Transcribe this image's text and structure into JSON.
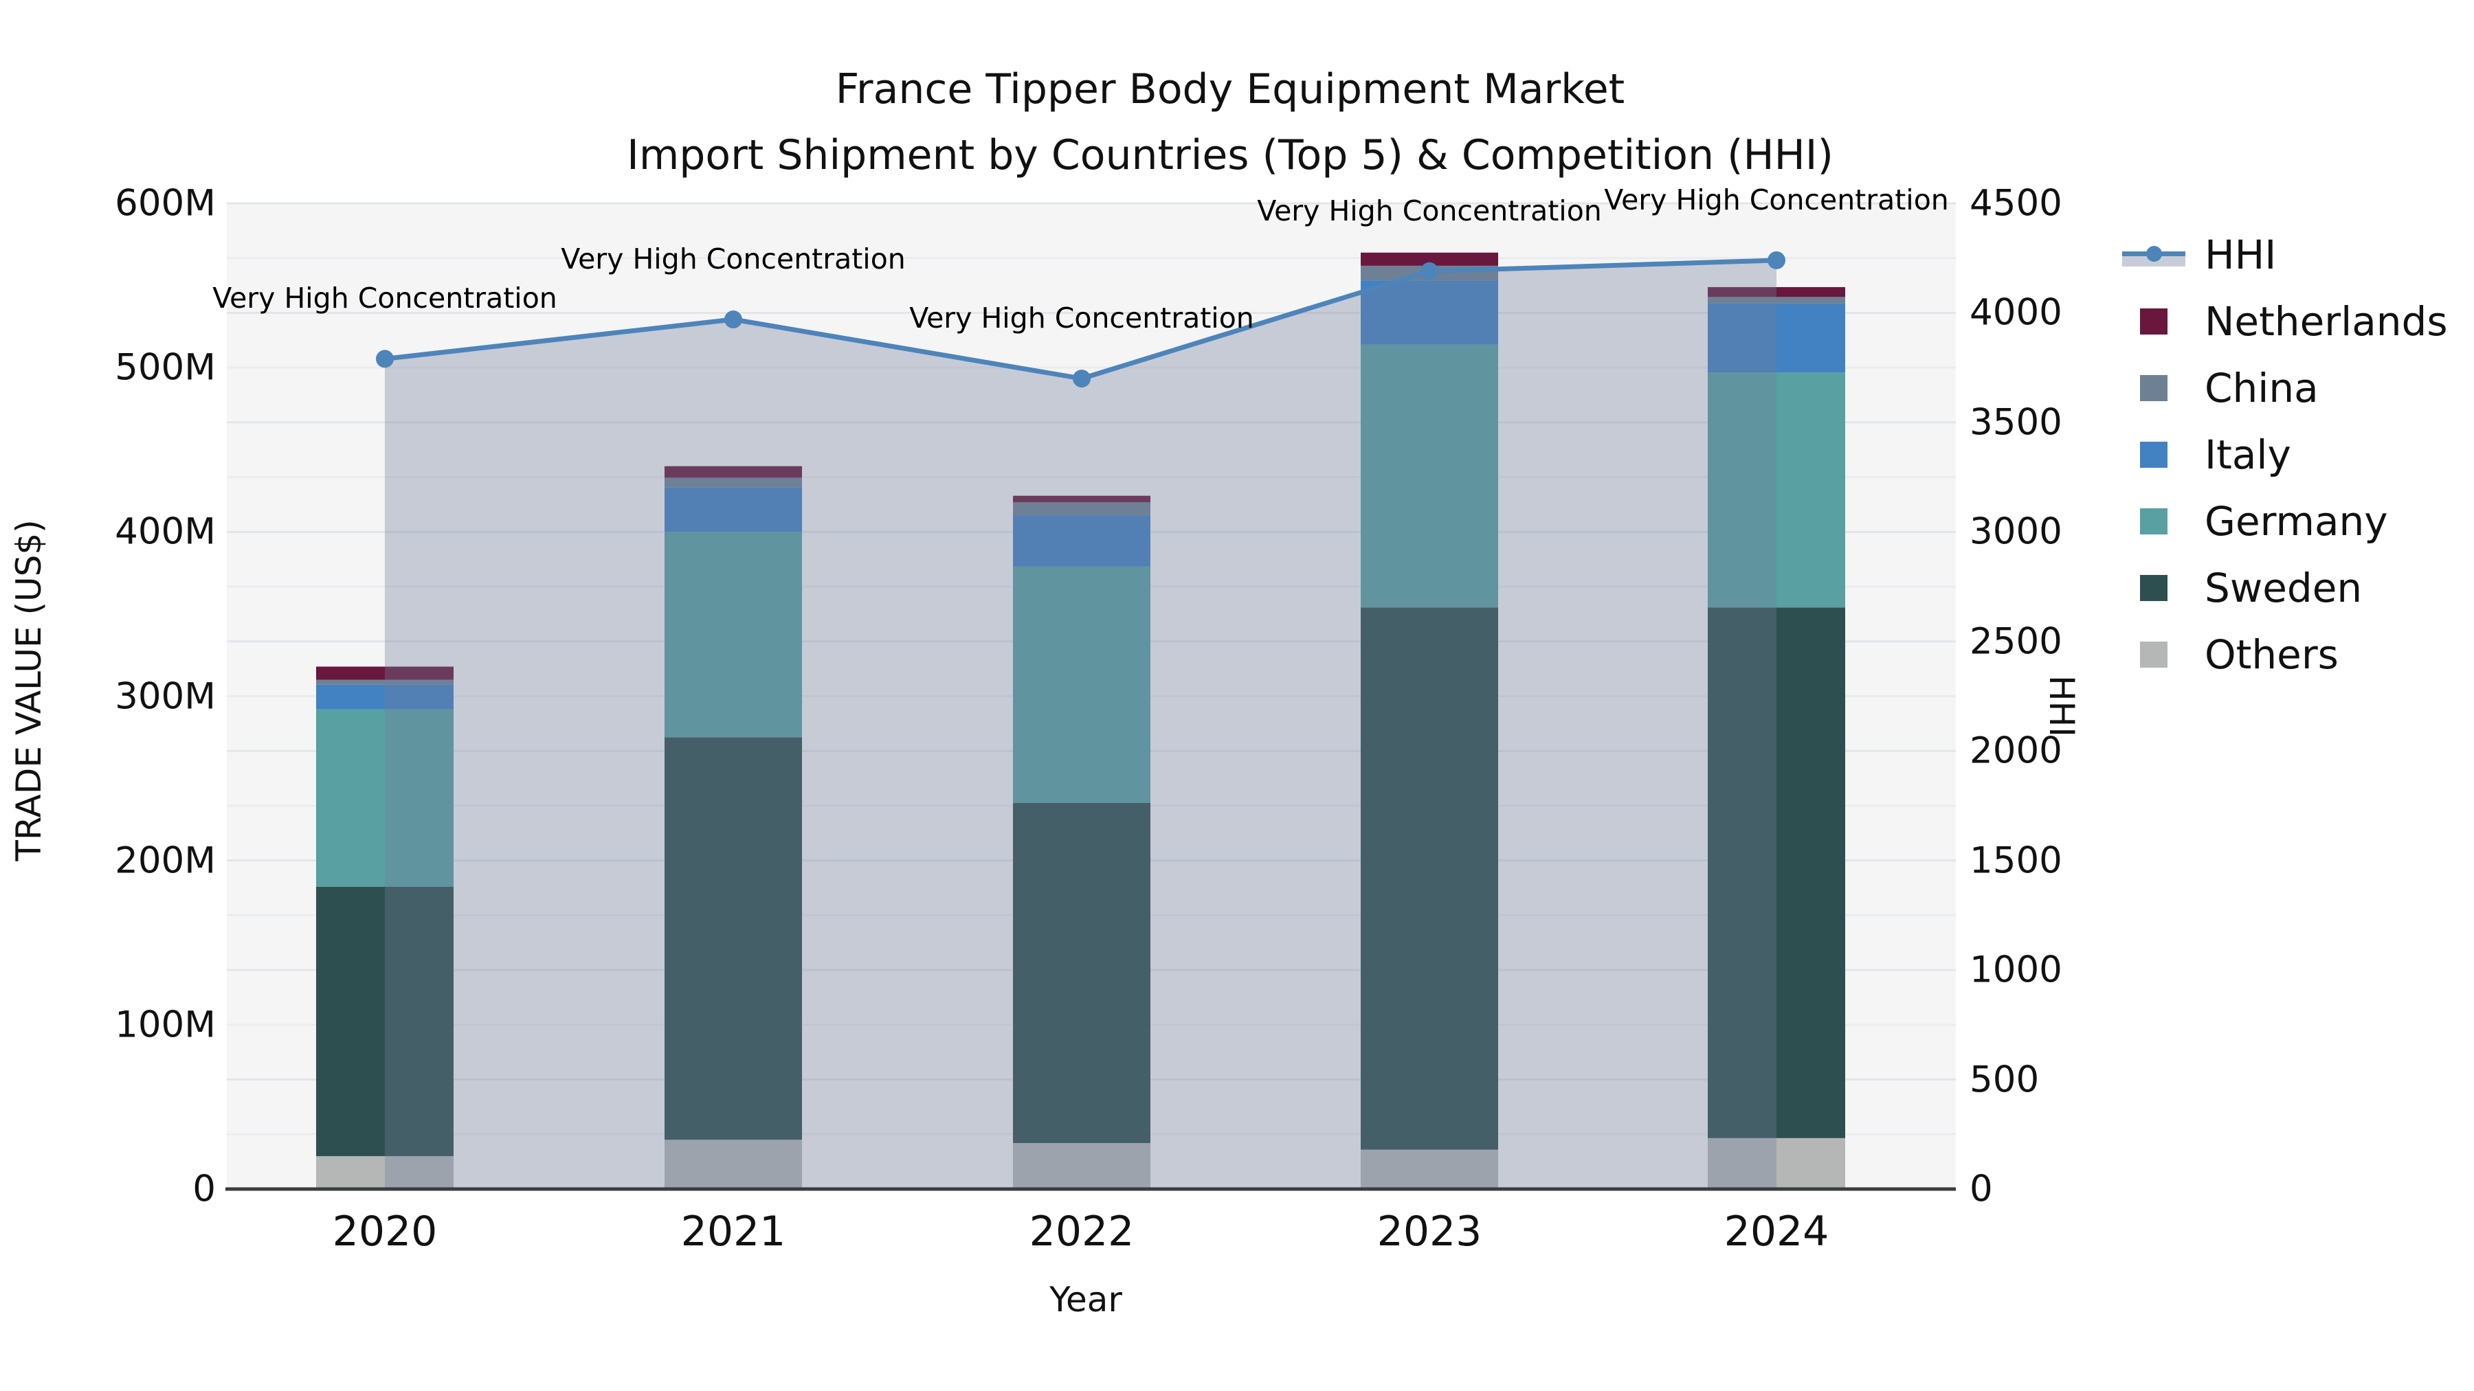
{
  "title": {
    "line1": "France Tipper Body Equipment Market",
    "line2": "Import Shipment by Countries (Top 5) & Competition (HHI)"
  },
  "axes": {
    "left": {
      "title": "TRADE VALUE (US$)",
      "ticks": [
        "0",
        "100M",
        "200M",
        "300M",
        "400M",
        "500M",
        "600M"
      ],
      "tick_values": [
        0,
        100,
        200,
        300,
        400,
        500,
        600
      ],
      "max": 600
    },
    "right": {
      "title": "HHI",
      "ticks": [
        "0",
        "500",
        "1000",
        "1500",
        "2000",
        "2500",
        "3000",
        "3500",
        "4000",
        "4500"
      ],
      "tick_values": [
        0,
        500,
        1000,
        1500,
        2000,
        2500,
        3000,
        3500,
        4000,
        4500
      ],
      "max": 4500
    },
    "x": {
      "title": "Year"
    }
  },
  "colors": {
    "netherlands": "#69173d",
    "china": "#6e8194",
    "italy": "#4282c2",
    "germany": "#58a0a2",
    "sweden": "#2e4f4f",
    "others": "#b4b7b6",
    "hhi_line": "#4d84ba",
    "area_fill": "rgba(113,126,155,0.35)",
    "plot_bg": "#f5f5f6",
    "grid_minor": "#ebecee",
    "grid_major": "#e4e5e9",
    "spine": "#3c3c3c"
  },
  "legend": {
    "items": [
      {
        "label": "HHI",
        "type": "line",
        "color": "#4d84ba"
      },
      {
        "label": "Netherlands",
        "type": "swatch",
        "color": "#69173d"
      },
      {
        "label": "China",
        "type": "swatch",
        "color": "#6e8194"
      },
      {
        "label": "Italy",
        "type": "swatch",
        "color": "#4282c2"
      },
      {
        "label": "Germany",
        "type": "swatch",
        "color": "#58a0a2"
      },
      {
        "label": "Sweden",
        "type": "swatch",
        "color": "#2e4f4f"
      },
      {
        "label": "Others",
        "type": "swatch",
        "color": "#b4b7b6"
      }
    ]
  },
  "chart_data": {
    "type": "bar+line",
    "title": "France Tipper Body Equipment Market — Import Shipment by Countries (Top 5) & Competition (HHI)",
    "xlabel": "Year",
    "ylabel": "TRADE VALUE (US$)",
    "y2label": "HHI",
    "ylim_musd": [
      0,
      600
    ],
    "y2lim": [
      0,
      4500
    ],
    "grid": "horizontal, every 250 HHI units",
    "legend_position": "right",
    "categories": [
      "2020",
      "2021",
      "2022",
      "2023",
      "2024"
    ],
    "stack_order_bottom_to_top": [
      "Others",
      "Sweden",
      "Germany",
      "Italy",
      "China",
      "Netherlands"
    ],
    "series": [
      {
        "name": "Others",
        "color_key": "others",
        "values_musd": [
          20,
          30,
          28,
          24,
          31
        ]
      },
      {
        "name": "Sweden",
        "color_key": "sweden",
        "values_musd": [
          164,
          245,
          207,
          330,
          323
        ]
      },
      {
        "name": "Germany",
        "color_key": "germany",
        "values_musd": [
          108,
          125,
          144,
          160,
          143
        ]
      },
      {
        "name": "Italy",
        "color_key": "italy",
        "values_musd": [
          15,
          27,
          31,
          39,
          42
        ]
      },
      {
        "name": "China",
        "color_key": "china",
        "values_musd": [
          3,
          6,
          8,
          9,
          4
        ]
      },
      {
        "name": "Netherlands",
        "color_key": "netherlands",
        "values_musd": [
          8,
          7,
          4,
          8,
          6
        ]
      }
    ],
    "bar_totals_musd": [
      318,
      440,
      422,
      570,
      549
    ],
    "line_series": {
      "name": "HHI",
      "axis": "right",
      "values": [
        3790,
        3970,
        3700,
        4190,
        4240
      ],
      "has_area_fill": true,
      "markers": "circle"
    },
    "annotations": [
      {
        "year": "2020",
        "text": "Very High Concentration"
      },
      {
        "year": "2021",
        "text": "Very High Concentration"
      },
      {
        "year": "2022",
        "text": "Very High Concentration"
      },
      {
        "year": "2023",
        "text": "Very High Concentration"
      },
      {
        "year": "2024",
        "text": "Very High Concentration"
      }
    ]
  }
}
